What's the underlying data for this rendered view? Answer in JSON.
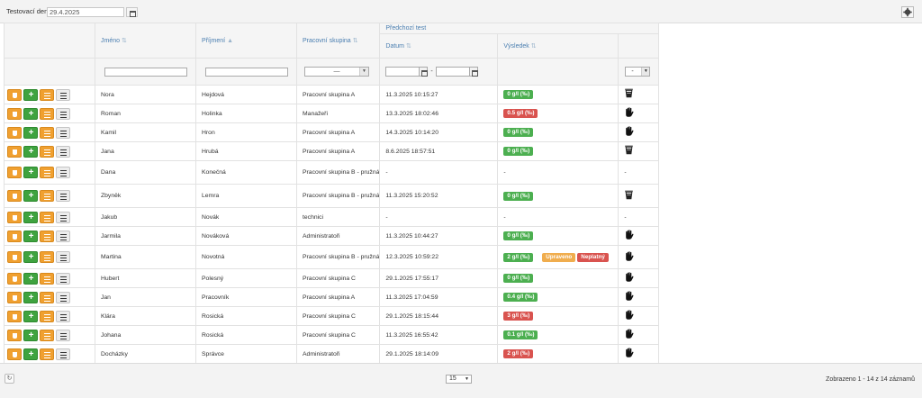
{
  "toolbar": {
    "test_day_label": "Testovací den",
    "test_day_value": "29.4.2025"
  },
  "icons": {
    "settings": "gear-icon",
    "calendar": "calendar-icon",
    "refresh": "refresh-icon",
    "result_cup": "breathalyzer-cup-icon",
    "result_hand": "hand-icon"
  },
  "columns": {
    "first_name": "Jméno",
    "last_name": "Příjmení",
    "workgroup": "Pracovní skupina",
    "previous_test": "Předchozí test",
    "date": "Datum",
    "result": "Výsledek"
  },
  "filters": {
    "workgroup_selected": "—",
    "type_selected": "-"
  },
  "colors": {
    "action_orange": "#f0a030",
    "action_green": "#3fa33f",
    "badge_green": "#4caf50",
    "badge_red": "#d9534f",
    "badge_orange": "#f0ad4e",
    "header_blue": "#4a7eb0"
  },
  "rows": [
    {
      "first": "Nora",
      "last": "Hejdová",
      "group": "Pracovní skupina A",
      "date": "11.3.2025 10:15:27",
      "result": "0 g/l (‰)",
      "result_color": "green",
      "type": "cup"
    },
    {
      "first": "Roman",
      "last": "Holinka",
      "group": "Manažeři",
      "date": "13.3.2025 18:02:46",
      "result": "0.5 g/l (‰)",
      "result_color": "red",
      "type": "hand"
    },
    {
      "first": "Kamil",
      "last": "Hron",
      "group": "Pracovní skupina A",
      "date": "14.3.2025 10:14:20",
      "result": "0 g/l (‰)",
      "result_color": "green",
      "type": "hand"
    },
    {
      "first": "Jana",
      "last": "Hrubá",
      "group": "Pracovní skupina A",
      "date": "8.6.2025 18:57:51",
      "result": "0 g/l (‰)",
      "result_color": "green",
      "type": "cup"
    },
    {
      "first": "Dana",
      "last": "Konečná",
      "group": "Pracovní skupina B - pružná",
      "date": "-",
      "result": "-",
      "result_color": "none",
      "type": "-"
    },
    {
      "first": "Zbyněk",
      "last": "Lemra",
      "group": "Pracovní skupina B - pružná",
      "date": "11.3.2025 15:20:52",
      "result": "0 g/l (‰)",
      "result_color": "green",
      "type": "cup"
    },
    {
      "first": "Jakub",
      "last": "Novák",
      "group": "technici",
      "date": "-",
      "result": "-",
      "result_color": "none",
      "type": "-"
    },
    {
      "first": "Jarmila",
      "last": "Nováková",
      "group": "Administratoři",
      "date": "11.3.2025 10:44:27",
      "result": "0 g/l (‰)",
      "result_color": "green",
      "type": "hand"
    },
    {
      "first": "Martina",
      "last": "Novotná",
      "group": "Pracovní skupina B - pružná",
      "date": "12.3.2025 10:59:22",
      "result": "2 g/l (‰)",
      "result_color": "green",
      "type": "hand",
      "badge1": "Upraveno",
      "badge2": "Neplatný"
    },
    {
      "first": "Hubert",
      "last": "Polesný",
      "group": "Pracovní skupina C",
      "date": "29.1.2025 17:55:17",
      "result": "0 g/l (‰)",
      "result_color": "green",
      "type": "hand"
    },
    {
      "first": "Jan",
      "last": "Pracovník",
      "group": "Pracovní skupina A",
      "date": "11.3.2025 17:04:59",
      "result": "0.4 g/l (‰)",
      "result_color": "green",
      "type": "hand"
    },
    {
      "first": "Klára",
      "last": "Rosická",
      "group": "Pracovní skupina C",
      "date": "29.1.2025 18:15:44",
      "result": "3 g/l (‰)",
      "result_color": "red",
      "type": "hand"
    },
    {
      "first": "Johana",
      "last": "Rosická",
      "group": "Pracovní skupina C",
      "date": "11.3.2025 16:55:42",
      "result": "0.1 g/l (‰)",
      "result_color": "green",
      "type": "hand"
    },
    {
      "first": "Docházky",
      "last": "Správce",
      "group": "Administratoři",
      "date": "29.1.2025 18:14:09",
      "result": "2 g/l (‰)",
      "result_color": "red",
      "type": "hand"
    }
  ],
  "footer": {
    "page_size": "15",
    "info": "Zobrazeno 1 - 14 z 14 záznamů"
  }
}
